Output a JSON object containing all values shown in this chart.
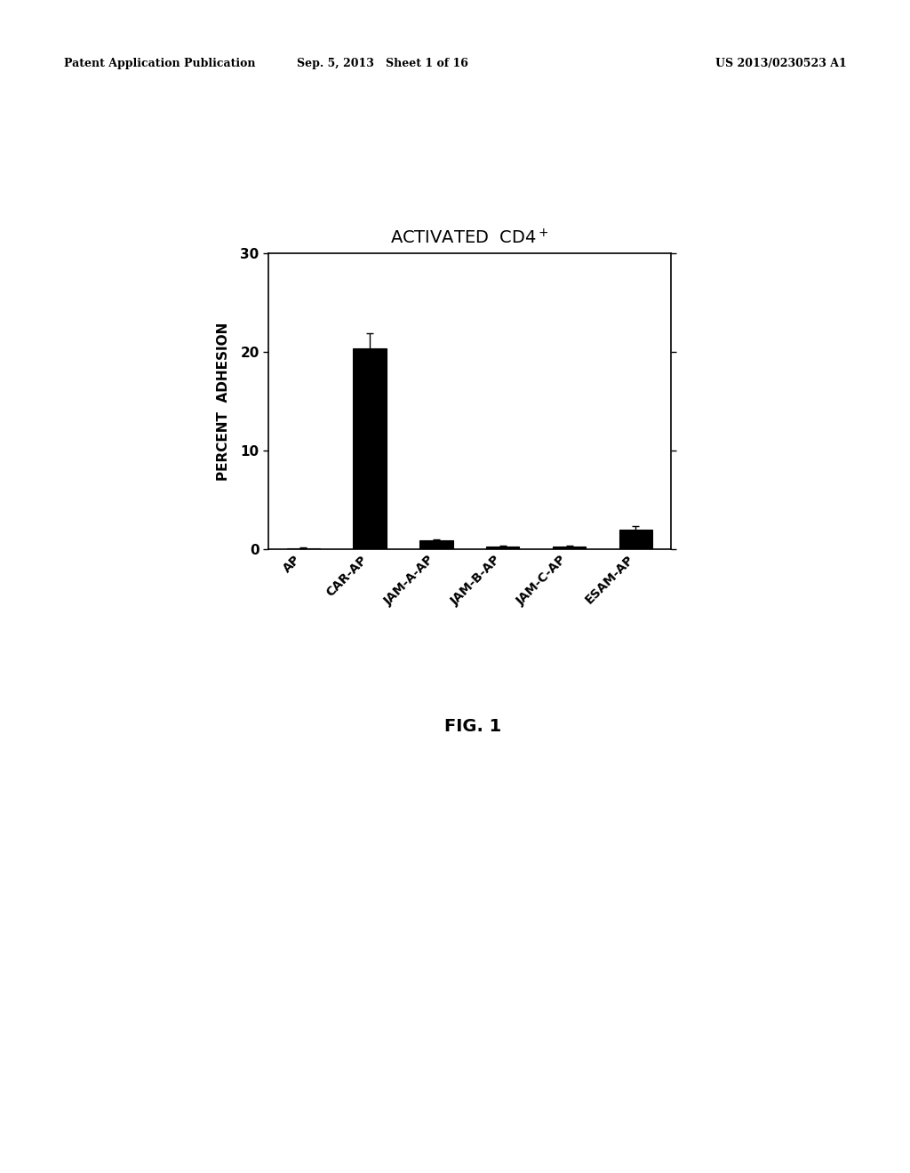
{
  "title": "ACTIVATED  CD4$^+$",
  "ylabel": "PERCENT  ADHESION",
  "fig_label": "FIG. 1",
  "categories": [
    "AP",
    "CAR-AP",
    "JAM-A-AP",
    "JAM-B-AP",
    "JAM-C-AP",
    "ESAM-AP"
  ],
  "values": [
    0.08,
    20.4,
    0.85,
    0.28,
    0.25,
    2.0
  ],
  "errors": [
    0.05,
    1.5,
    0.12,
    0.08,
    0.07,
    0.35
  ],
  "bar_color": "#000000",
  "background_color": "#ffffff",
  "ylim": [
    0,
    30
  ],
  "yticks": [
    0,
    10,
    20,
    30
  ],
  "bar_width": 0.5,
  "header_left": "Patent Application Publication",
  "header_center": "Sep. 5, 2013   Sheet 1 of 16",
  "header_right": "US 2013/0230523 A1"
}
